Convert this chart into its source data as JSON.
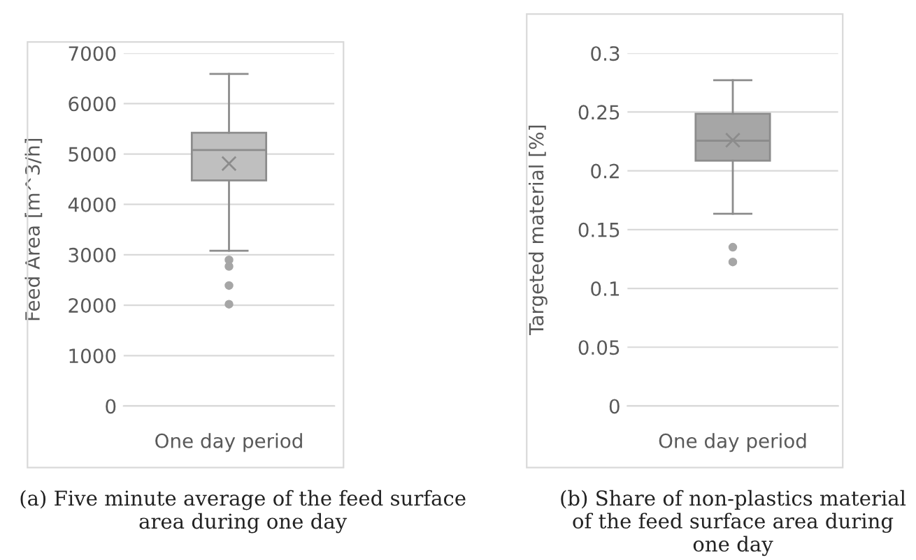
{
  "chart_data": [
    {
      "type": "box",
      "categories": [
        "One day period"
      ],
      "ylabel": "Feed Area [m^3/h]",
      "ylim": [
        0,
        7000
      ],
      "yticks": [
        0,
        1000,
        2000,
        3000,
        4000,
        5000,
        6000,
        7000
      ],
      "grid": "y",
      "color": "#bfbfbf",
      "marker": "circle",
      "boxes": [
        {
          "low": 3080,
          "q1": 4475,
          "median": 5080,
          "q3": 5420,
          "high": 6590,
          "mean": 4810,
          "outliers": [
            2900,
            2770,
            2390,
            2020
          ]
        }
      ],
      "annotations": [
        "(a) Five minute average of the feed surface area during one day"
      ]
    },
    {
      "type": "box",
      "categories": [
        "One day period"
      ],
      "ylabel": "Targeted material [%]",
      "ylim": [
        0,
        0.3
      ],
      "yticks": [
        0,
        0.05,
        0.1,
        0.15,
        0.2,
        0.25,
        0.3
      ],
      "grid": "y",
      "color": "#a6a6a6",
      "marker": "circle",
      "boxes": [
        {
          "low": 0.1635,
          "q1": 0.2086,
          "median": 0.2256,
          "q3": 0.2485,
          "high": 0.277,
          "mean": 0.226,
          "outliers": [
            0.135,
            0.1225
          ]
        }
      ],
      "annotations": [
        "(b) Share of non-plastics material of the feed surface area during one day"
      ]
    }
  ]
}
